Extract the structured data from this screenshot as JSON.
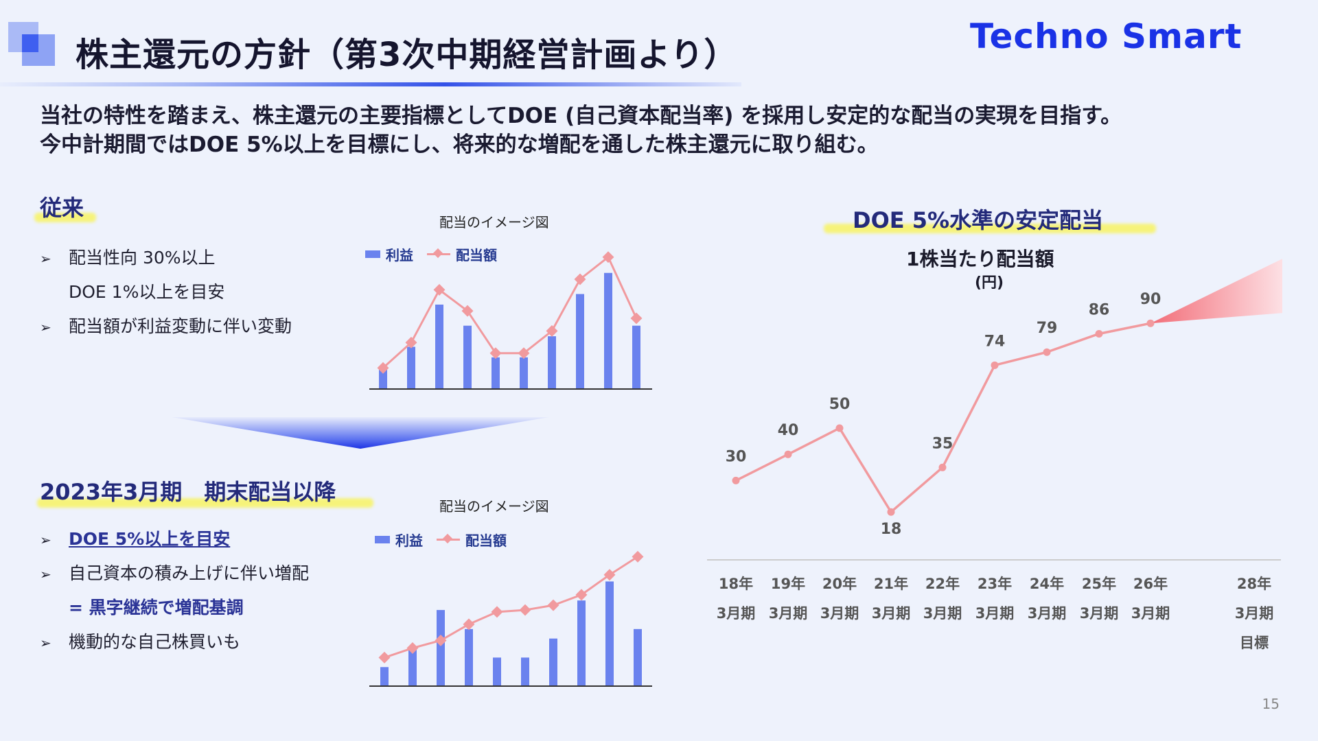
{
  "header": {
    "title": "株主還元の方針（第3次中期経営計画より）",
    "logo": "Techno Smart"
  },
  "lead": {
    "line1": "当社の特性を踏まえ、株主還元の主要指標としてDOE (自己資本配当率) を採用し安定的な配当の実現を目指す。",
    "line2": "今中計期間ではDOE 5%以上を目標にし、将来的な増配を通した株主還元に取り組む。"
  },
  "before": {
    "heading": "従来",
    "bullets": [
      "配当性向 30%以上",
      "DOE 1%以上を目安",
      "配当額が利益変動に伴い変動"
    ],
    "arrow": "➢"
  },
  "after": {
    "heading": "2023年3月期　期末配当以降",
    "bullets": [
      "DOE 5%以上を目安",
      "自己資本の積み上げに伴い増配",
      "= 黒字継続で増配基調",
      "機動的な自己株買いも"
    ],
    "arrow": "➢"
  },
  "right": {
    "heading": "DOE 5%水準の安定配当"
  },
  "page_number": "15",
  "chart_data": [
    {
      "type": "bar+line",
      "title": "配当のイメージ図",
      "legend": [
        "利益",
        "配当額"
      ],
      "series": [
        {
          "name": "利益",
          "values": [
            2,
            4,
            8,
            6,
            3,
            3,
            5,
            9,
            11,
            6
          ]
        },
        {
          "name": "配当額",
          "values": [
            2,
            4.4,
            9.4,
            7.4,
            3.4,
            3.4,
            5.5,
            10.4,
            12.5,
            6.7
          ]
        }
      ],
      "ylim": [
        0,
        13
      ]
    },
    {
      "type": "bar+line",
      "title": "配当のイメージ図",
      "legend": [
        "利益",
        "配当額"
      ],
      "series": [
        {
          "name": "利益",
          "values": [
            2,
            4,
            8,
            6,
            3,
            3,
            5,
            9,
            11,
            6
          ]
        },
        {
          "name": "配当額",
          "values": [
            3,
            4,
            4.8,
            6.5,
            7.8,
            8,
            8.5,
            9.6,
            11.7,
            13.6
          ]
        }
      ],
      "ylim": [
        0,
        15
      ]
    },
    {
      "type": "line",
      "title": "1株当たり配当額",
      "ylabel": "(円)",
      "categories": [
        [
          "18年",
          "3月期"
        ],
        [
          "19年",
          "3月期"
        ],
        [
          "20年",
          "3月期"
        ],
        [
          "21年",
          "3月期"
        ],
        [
          "22年",
          "3月期"
        ],
        [
          "23年",
          "3月期"
        ],
        [
          "24年",
          "3月期"
        ],
        [
          "25年",
          "3月期"
        ],
        [
          "26年",
          "3月期"
        ],
        [
          "28年",
          "3月期",
          "目標"
        ]
      ],
      "values": [
        30,
        40,
        50,
        18,
        35,
        74,
        79,
        86,
        90,
        null
      ],
      "ylim": [
        0,
        120
      ]
    }
  ]
}
